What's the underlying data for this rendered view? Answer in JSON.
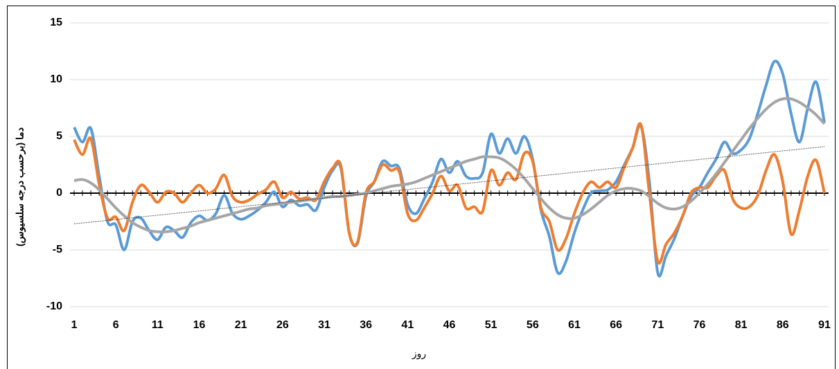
{
  "chart_data": {
    "type": "line",
    "x_label": "روز",
    "y_label": "دما (برحسب درجه سلسیوس)",
    "x": [
      1,
      2,
      3,
      4,
      5,
      6,
      7,
      8,
      9,
      10,
      11,
      12,
      13,
      14,
      15,
      16,
      17,
      18,
      19,
      20,
      21,
      22,
      23,
      24,
      25,
      26,
      27,
      28,
      29,
      30,
      31,
      32,
      33,
      34,
      35,
      36,
      37,
      38,
      39,
      40,
      41,
      42,
      43,
      44,
      45,
      46,
      47,
      48,
      49,
      50,
      51,
      52,
      53,
      54,
      55,
      56,
      57,
      58,
      59,
      60,
      61,
      62,
      63,
      64,
      65,
      66,
      67,
      68,
      69,
      70,
      71,
      72,
      73,
      74,
      75,
      76,
      77,
      78,
      79,
      80,
      81,
      82,
      83,
      84,
      85,
      86,
      87,
      88,
      89,
      90,
      91
    ],
    "series": [
      {
        "color": "#5b9bd5",
        "values": [
          5.8,
          4.5,
          5.7,
          1.5,
          -2.5,
          -2.8,
          -5.0,
          -2.5,
          -2.2,
          -3.3,
          -4.1,
          -3.0,
          -3.3,
          -3.9,
          -2.6,
          -2.0,
          -2.4,
          -1.8,
          -0.2,
          -1.8,
          -2.3,
          -2.0,
          -1.5,
          -0.8,
          0.1,
          -1.2,
          -0.6,
          -1.1,
          -1.0,
          -1.5,
          0.5,
          2.0,
          2.2,
          -3.5,
          -4.4,
          -0.3,
          1.0,
          2.8,
          2.4,
          2.2,
          -1.0,
          -1.8,
          -0.5,
          1.0,
          3.0,
          1.8,
          2.8,
          1.5,
          1.3,
          1.8,
          5.2,
          3.5,
          4.8,
          3.5,
          5.0,
          3.0,
          -1.5,
          -3.8,
          -7.0,
          -6.0,
          -3.5,
          -1.5,
          0.0,
          0.2,
          0.3,
          1.0,
          2.5,
          4.0,
          5.9,
          1.0,
          -7.0,
          -5.5,
          -4.0,
          -2.0,
          -0.3,
          0.5,
          1.8,
          3.0,
          4.5,
          3.5,
          3.8,
          4.8,
          7.0,
          9.5,
          11.6,
          10.5,
          7.0,
          4.5,
          7.5,
          9.8,
          6.2
        ]
      },
      {
        "color": "#ed7d31",
        "values": [
          4.7,
          3.4,
          4.8,
          0.8,
          -2.2,
          -2.1,
          -3.3,
          -0.8,
          0.7,
          0.1,
          -0.8,
          0.1,
          0.0,
          -0.8,
          0.0,
          0.7,
          0.0,
          0.4,
          1.6,
          -0.3,
          -0.8,
          -0.6,
          -0.1,
          0.3,
          1.0,
          -0.4,
          0.1,
          -0.5,
          -0.4,
          -0.6,
          1.0,
          2.2,
          2.4,
          -3.5,
          -4.3,
          0.0,
          1.0,
          2.5,
          2.0,
          1.9,
          -1.8,
          -2.4,
          -1.3,
          0.0,
          1.5,
          0.2,
          0.7,
          -1.3,
          -1.2,
          -1.6,
          2.0,
          0.7,
          1.8,
          1.2,
          3.5,
          2.8,
          -1.3,
          -2.5,
          -5.0,
          -4.0,
          -1.8,
          0.0,
          1.0,
          0.5,
          1.0,
          0.5,
          2.3,
          4.0,
          6.0,
          0.0,
          -6.0,
          -4.5,
          -3.5,
          -2.0,
          0.0,
          0.5,
          0.5,
          1.5,
          2.0,
          -0.5,
          -1.3,
          -1.2,
          -0.2,
          2.0,
          3.4,
          1.0,
          -3.6,
          -1.5,
          1.5,
          2.9,
          0.0
        ]
      },
      {
        "color": "#a5a5a5",
        "values": [
          1.1,
          1.2,
          0.9,
          0.3,
          -0.5,
          -1.3,
          -2.0,
          -2.6,
          -3.0,
          -3.3,
          -3.4,
          -3.4,
          -3.3,
          -3.1,
          -2.9,
          -2.6,
          -2.4,
          -2.2,
          -2.0,
          -1.8,
          -1.6,
          -1.4,
          -1.3,
          -1.1,
          -1.0,
          -0.9,
          -0.8,
          -0.7,
          -0.6,
          -0.5,
          -0.4,
          -0.3,
          -0.3,
          -0.2,
          -0.1,
          0.0,
          0.2,
          0.4,
          0.6,
          0.7,
          0.8,
          1.0,
          1.3,
          1.6,
          1.9,
          2.2,
          2.5,
          2.8,
          3.0,
          3.2,
          3.2,
          3.1,
          2.7,
          2.1,
          1.3,
          0.4,
          -0.5,
          -1.3,
          -1.9,
          -2.2,
          -2.2,
          -1.9,
          -1.4,
          -0.8,
          -0.2,
          0.2,
          0.4,
          0.4,
          0.2,
          -0.3,
          -0.9,
          -1.3,
          -1.4,
          -1.2,
          -0.7,
          0.0,
          0.8,
          1.7,
          2.7,
          3.7,
          4.7,
          5.7,
          6.6,
          7.4,
          8.0,
          8.3,
          8.3,
          8.0,
          7.5,
          6.9,
          6.1
        ]
      }
    ],
    "trendline": {
      "x": [
        1,
        91
      ],
      "values": [
        -2.7,
        4.1
      ],
      "color": "#000000"
    },
    "xlim": [
      0.5,
      91.5
    ],
    "ylim": [
      -10,
      15
    ],
    "xticks": [
      1,
      6,
      11,
      16,
      21,
      26,
      31,
      36,
      41,
      46,
      51,
      56,
      61,
      66,
      71,
      76,
      81,
      86,
      91
    ],
    "yticks": [
      -10,
      -5,
      0,
      5,
      10,
      15
    ],
    "grid": true
  }
}
